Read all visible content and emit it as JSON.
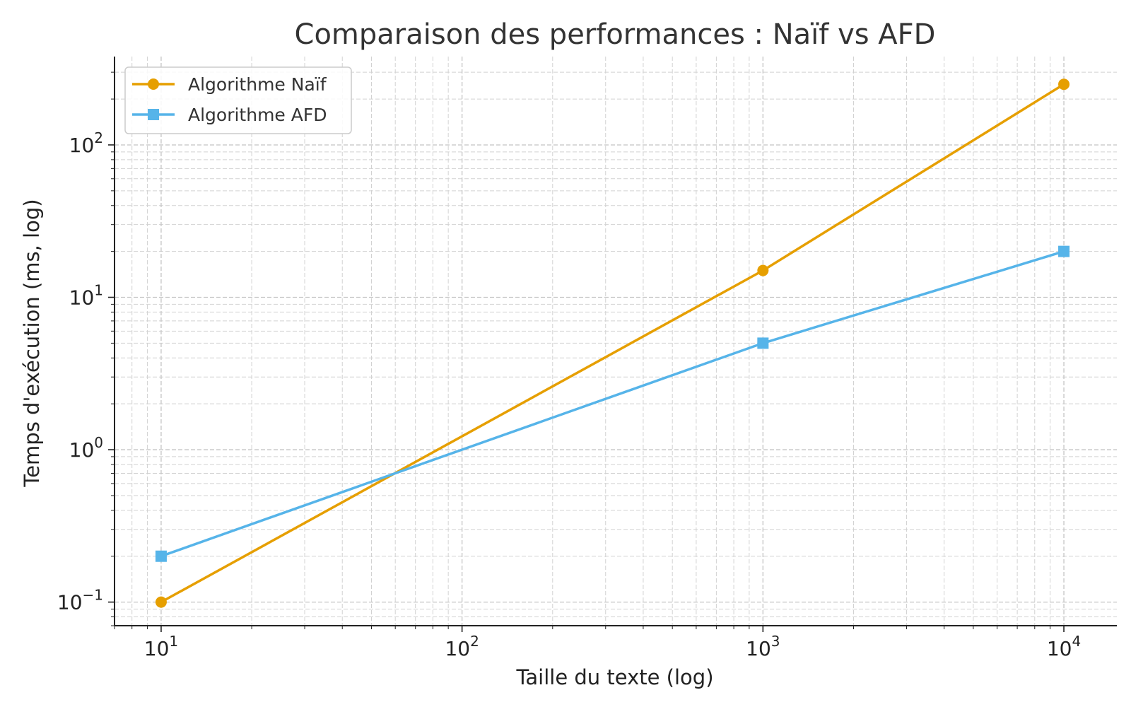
{
  "chart_data": {
    "type": "line",
    "title": "Comparaison des performances : Naïf vs AFD",
    "xlabel": "Taille du texte (log)",
    "ylabel": "Temps d'exécution (ms, log)",
    "x_scale": "log",
    "y_scale": "log",
    "xlim": [
      7,
      15000
    ],
    "ylim": [
      0.07,
      380
    ],
    "x_ticks": [
      {
        "value": 10,
        "base": "10",
        "exp": "1"
      },
      {
        "value": 100,
        "base": "10",
        "exp": "2"
      },
      {
        "value": 1000,
        "base": "10",
        "exp": "3"
      },
      {
        "value": 10000,
        "base": "10",
        "exp": "4"
      }
    ],
    "y_ticks": [
      {
        "value": 0.1,
        "base": "10",
        "exp": "−1"
      },
      {
        "value": 1,
        "base": "10",
        "exp": "0"
      },
      {
        "value": 10,
        "base": "10",
        "exp": "1"
      },
      {
        "value": 100,
        "base": "10",
        "exp": "2"
      }
    ],
    "grid": true,
    "legend_position": "top-left",
    "x": [
      10,
      1000,
      10000
    ],
    "series": [
      {
        "name": "Algorithme Naïf",
        "values": [
          0.1,
          15,
          250
        ],
        "color": "#E69F00",
        "marker": "circle"
      },
      {
        "name": "Algorithme AFD",
        "values": [
          0.2,
          5,
          20
        ],
        "color": "#56B4E9",
        "marker": "square"
      }
    ]
  }
}
